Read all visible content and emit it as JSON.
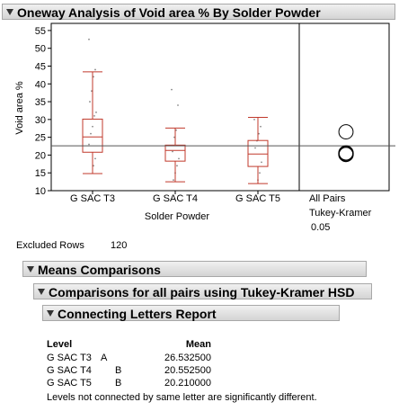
{
  "title": "Oneway Analysis of Void area % By Solder Powder",
  "chart_data": {
    "type": "box",
    "categories": [
      "G SAC T3",
      "G SAC T4",
      "G SAC T5"
    ],
    "y_label": "Void area %",
    "x_label": "Solder Powder",
    "ylim": [
      10,
      57
    ],
    "yticks": [
      10,
      15,
      20,
      25,
      30,
      35,
      40,
      45,
      50,
      55
    ],
    "color": "#c0392b",
    "boxes": [
      {
        "whisker_low": 14.8,
        "q1": 20.8,
        "median": 25.1,
        "q3": 30.1,
        "whisker_high": 43.4
      },
      {
        "whisker_low": 12.5,
        "q1": 18.3,
        "median": 21.3,
        "q3": 22.8,
        "whisker_high": 27.6
      },
      {
        "whisker_low": 12.0,
        "q1": 16.8,
        "median": 20.3,
        "q3": 24.1,
        "whisker_high": 30.6
      }
    ],
    "points": [
      [
        52.5,
        44,
        42,
        38,
        35,
        32,
        31,
        28,
        26,
        23,
        19,
        17
      ],
      [
        38.4,
        34,
        27,
        25,
        21,
        19,
        17,
        15,
        13
      ],
      [
        30,
        28,
        26,
        24,
        22,
        18,
        15,
        13
      ]
    ],
    "mean_line": 22.6,
    "comparison_labels": [
      "All Pairs",
      "Tukey-Kramer"
    ],
    "alpha": 0.05,
    "circle_centers": [
      26.53,
      20.55,
      20.21
    ],
    "circle_radius": 2.0
  },
  "excluded_label": "Excluded Rows",
  "excluded_count": 120,
  "sections": [
    "Means Comparisons",
    "Comparisons for all pairs using Tukey-Kramer HSD",
    "Connecting Letters Report"
  ],
  "report": {
    "headers": [
      "Level",
      "Mean"
    ],
    "rows": [
      {
        "level": "G SAC T3",
        "letter": "A",
        "mean": "26.532500"
      },
      {
        "level": "G SAC T4",
        "letter": "B",
        "mean": "20.552500"
      },
      {
        "level": "G SAC T5",
        "letter": "B",
        "mean": "20.210000"
      }
    ],
    "footer": "Levels not connected by same letter are significantly different."
  }
}
